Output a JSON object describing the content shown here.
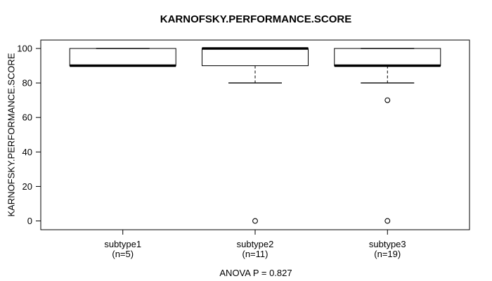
{
  "title": "KARNOFSKY.PERFORMANCE.SCORE",
  "chart_data": {
    "type": "boxplot",
    "title": "KARNOFSKY.PERFORMANCE.SCORE",
    "ylabel": "KARNOFSKY.PERFORMANCE.SCORE",
    "xlabel": "",
    "annotation": "ANOVA P = 0.827",
    "ylim": [
      0,
      100
    ],
    "yticks": [
      0,
      20,
      40,
      60,
      80,
      100
    ],
    "grid": false,
    "legend": null,
    "groups": [
      {
        "label": "subtype1",
        "sublabel": "(n=5)",
        "n": 5,
        "q1": 90,
        "median": 90,
        "q3": 100,
        "whisker_low": 90,
        "whisker_high": 100,
        "outliers": []
      },
      {
        "label": "subtype2",
        "sublabel": "(n=11)",
        "n": 11,
        "q1": 90,
        "median": 100,
        "q3": 100,
        "whisker_low": 80,
        "whisker_high": 100,
        "outliers": [
          0
        ]
      },
      {
        "label": "subtype3",
        "sublabel": "(n=19)",
        "n": 19,
        "q1": 90,
        "median": 90,
        "q3": 100,
        "whisker_low": 80,
        "whisker_high": 100,
        "outliers": [
          70,
          0
        ]
      }
    ],
    "colors": {
      "line": "#000000",
      "background": "#ffffff",
      "box_fill": "#ffffff"
    }
  }
}
